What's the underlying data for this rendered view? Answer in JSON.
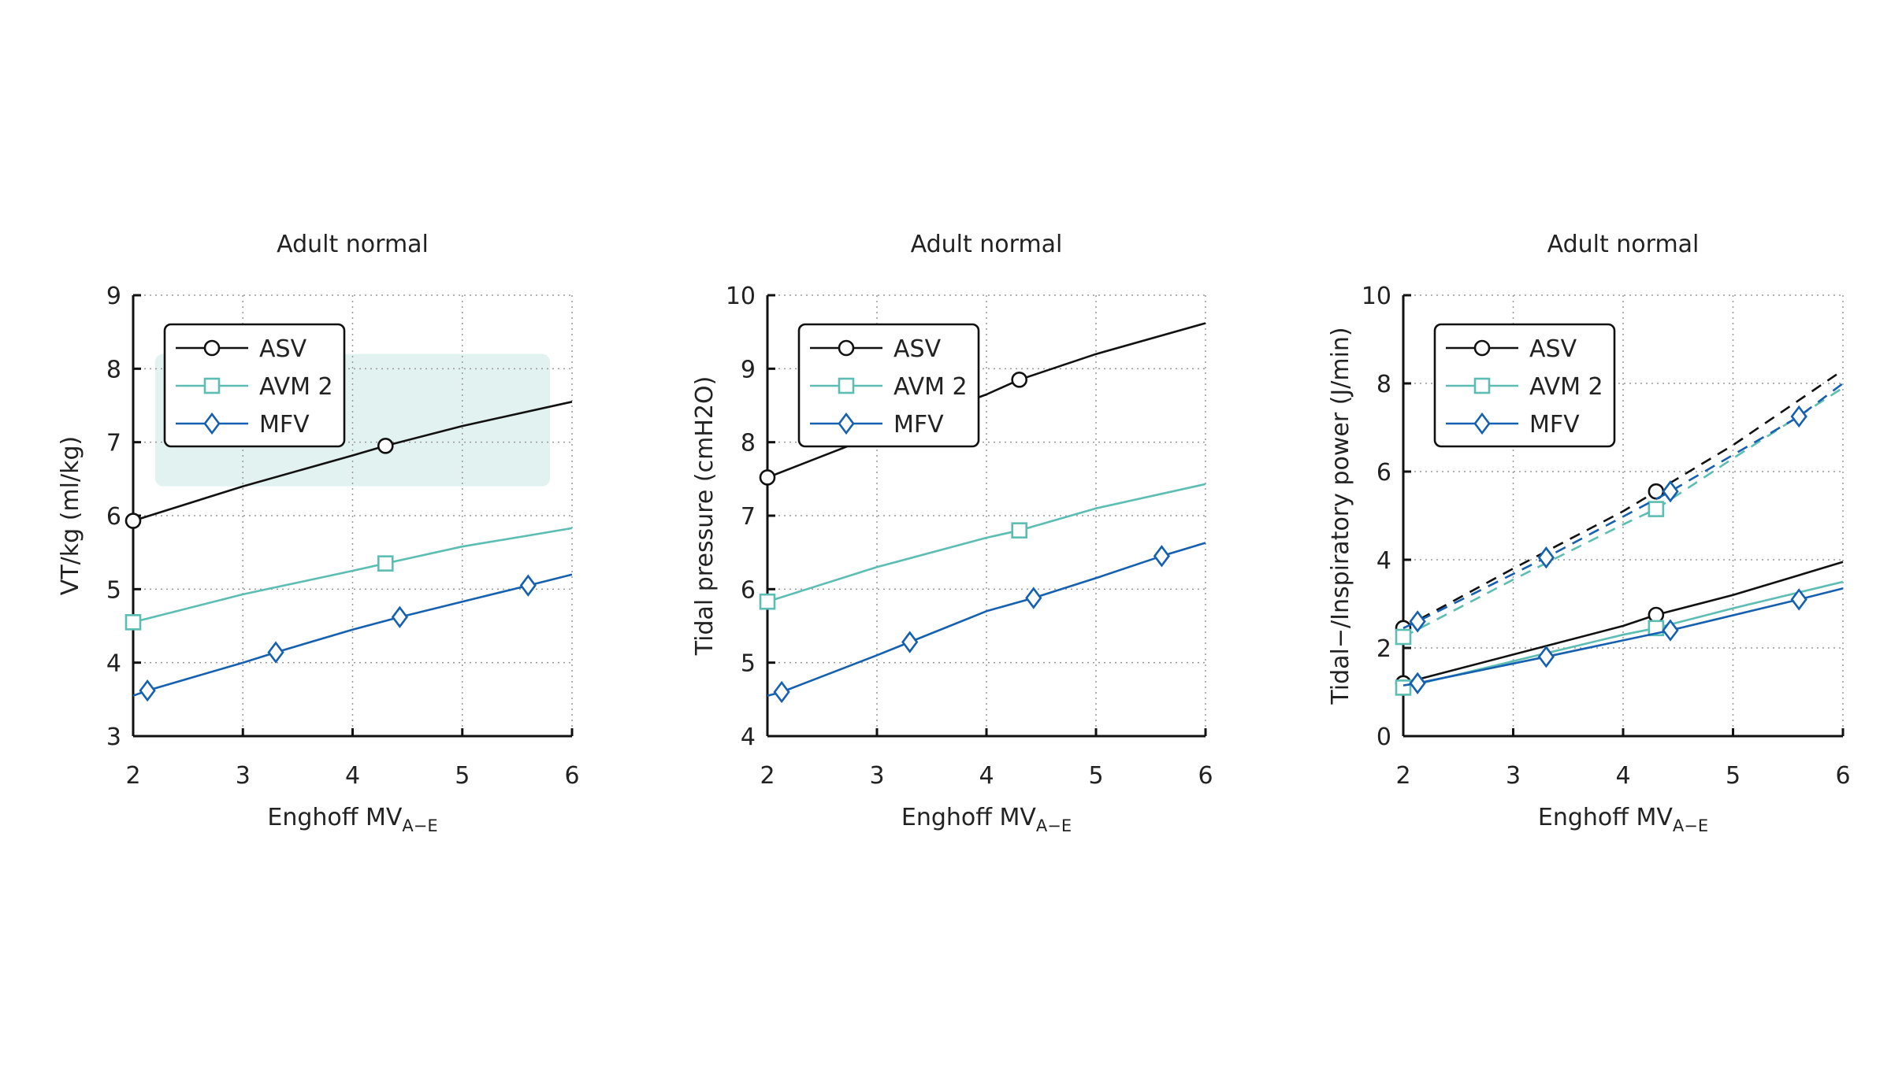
{
  "colors": {
    "ASV": "#111111",
    "AVM 2": "#5cbdb2",
    "MFV": "#1560b0",
    "shade": "#e2f2f0",
    "grid": "#999999"
  },
  "chart_data": [
    {
      "type": "line",
      "title": "Adult normal",
      "xlabel": "Enghoff MV",
      "xlabel_sub": "A−E",
      "ylabel": "VT/kg (ml/kg)",
      "xlim": [
        2,
        6
      ],
      "ylim": [
        3,
        9
      ],
      "xticks": [
        2,
        3,
        4,
        5,
        6
      ],
      "yticks": [
        3,
        4,
        5,
        6,
        7,
        8,
        9
      ],
      "grid": true,
      "legend": "top-left",
      "shaded_region": {
        "x": [
          2.2,
          5.8
        ],
        "y": [
          6.4,
          8.2
        ]
      },
      "series": [
        {
          "name": "ASV",
          "marker": "circle",
          "dash": false,
          "x": [
            2,
            3,
            4,
            4.3,
            5,
            6
          ],
          "y": [
            5.93,
            6.4,
            6.82,
            6.95,
            7.22,
            7.55
          ],
          "markers_at": [
            2,
            4.3
          ]
        },
        {
          "name": "AVM 2",
          "marker": "square",
          "dash": false,
          "x": [
            2,
            3,
            4,
            4.3,
            5,
            6
          ],
          "y": [
            4.55,
            4.93,
            5.25,
            5.35,
            5.58,
            5.83
          ],
          "markers_at": [
            2,
            4.3
          ]
        },
        {
          "name": "MFV",
          "marker": "diamond",
          "dash": false,
          "x": [
            2,
            2.13,
            3,
            3.3,
            4,
            4.43,
            5,
            5.6,
            6
          ],
          "y": [
            3.55,
            3.62,
            4.0,
            4.14,
            4.45,
            4.62,
            4.83,
            5.05,
            5.2
          ],
          "markers_at": [
            2.13,
            3.3,
            4.43,
            5.6
          ]
        }
      ]
    },
    {
      "type": "line",
      "title": "Adult normal",
      "xlabel": "Enghoff MV",
      "xlabel_sub": "A−E",
      "ylabel": "Tidal pressure (cmH2O)",
      "xlim": [
        2,
        6
      ],
      "ylim": [
        4,
        10
      ],
      "xticks": [
        2,
        3,
        4,
        5,
        6
      ],
      "yticks": [
        4,
        5,
        6,
        7,
        8,
        9,
        10
      ],
      "grid": true,
      "legend": "top-left",
      "series": [
        {
          "name": "ASV",
          "marker": "circle",
          "dash": false,
          "x": [
            2,
            3,
            4,
            4.3,
            5,
            6
          ],
          "y": [
            7.52,
            8.1,
            8.65,
            8.85,
            9.2,
            9.62
          ],
          "markers_at": [
            2,
            4.3
          ]
        },
        {
          "name": "AVM 2",
          "marker": "square",
          "dash": false,
          "x": [
            2,
            3,
            4,
            4.3,
            5,
            6
          ],
          "y": [
            5.83,
            6.3,
            6.7,
            6.8,
            7.1,
            7.43
          ],
          "markers_at": [
            2,
            4.3
          ]
        },
        {
          "name": "MFV",
          "marker": "diamond",
          "dash": false,
          "x": [
            2,
            2.13,
            3,
            3.3,
            4,
            4.43,
            5,
            5.6,
            6
          ],
          "y": [
            4.55,
            4.6,
            5.1,
            5.28,
            5.7,
            5.88,
            6.15,
            6.45,
            6.63
          ],
          "markers_at": [
            2.13,
            3.3,
            4.43,
            5.6
          ]
        }
      ]
    },
    {
      "type": "line",
      "title": "Adult normal",
      "xlabel": "Enghoff MV",
      "xlabel_sub": "A−E",
      "ylabel": "Tidal−/Inspiratory power (J/min)",
      "xlim": [
        2,
        6
      ],
      "ylim": [
        0,
        10
      ],
      "xticks": [
        2,
        3,
        4,
        5,
        6
      ],
      "yticks": [
        0,
        2,
        4,
        6,
        8,
        10
      ],
      "grid": true,
      "legend": "top-left",
      "series": [
        {
          "name": "ASV",
          "marker": "circle",
          "dash": false,
          "x": [
            2,
            3,
            4,
            4.3,
            5,
            6
          ],
          "y": [
            1.2,
            1.85,
            2.5,
            2.75,
            3.2,
            3.95
          ],
          "markers_at": [
            2,
            4.3
          ]
        },
        {
          "name": "AVM 2",
          "marker": "square",
          "dash": false,
          "x": [
            2,
            3,
            4,
            4.3,
            5,
            6
          ],
          "y": [
            1.1,
            1.7,
            2.3,
            2.45,
            2.9,
            3.5
          ],
          "markers_at": [
            2,
            4.3
          ]
        },
        {
          "name": "MFV",
          "marker": "diamond",
          "dash": false,
          "x": [
            2,
            2.13,
            3.3,
            4.43,
            5.6,
            6
          ],
          "y": [
            1.15,
            1.2,
            1.8,
            2.4,
            3.1,
            3.35
          ],
          "markers_at": [
            2.13,
            3.3,
            4.43,
            5.6
          ]
        },
        {
          "name": "ASV",
          "marker": "circle",
          "dash": true,
          "legend": false,
          "x": [
            2,
            3,
            4,
            4.3,
            5,
            6
          ],
          "y": [
            2.45,
            3.8,
            5.1,
            5.55,
            6.6,
            8.3
          ],
          "markers_at": [
            2,
            4.3
          ]
        },
        {
          "name": "AVM 2",
          "marker": "square",
          "dash": true,
          "legend": false,
          "x": [
            2,
            3,
            4,
            4.3,
            5,
            6
          ],
          "y": [
            2.25,
            3.55,
            4.8,
            5.15,
            6.3,
            7.9
          ],
          "markers_at": [
            2,
            4.3
          ]
        },
        {
          "name": "MFV",
          "marker": "diamond",
          "dash": true,
          "legend": false,
          "x": [
            2,
            2.13,
            3.3,
            4.43,
            5.6,
            6
          ],
          "y": [
            2.45,
            2.6,
            4.05,
            5.55,
            7.25,
            8.0
          ],
          "markers_at": [
            2.13,
            3.3,
            4.43,
            5.6
          ]
        }
      ]
    }
  ]
}
